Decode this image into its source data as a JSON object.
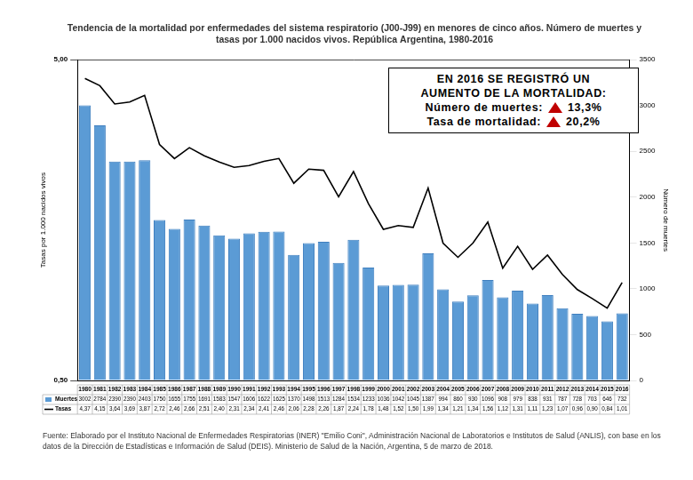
{
  "chart_data": {
    "type": "bar",
    "title": [
      "Tendencia de la mortalidad por enfermedades del sistema respiratorio (J00-J99) en menores de cinco años. Número de muertes y",
      "tasas por 1.000 nacidos vivos. República Argentina, 1980-2016"
    ],
    "y_label": "Tasas por 1.000 nacidos vivos",
    "y2_label": "Número de muertes",
    "categories": [
      "1980",
      "1981",
      "1982",
      "1983",
      "1984",
      "1985",
      "1986",
      "1987",
      "1988",
      "1989",
      "1990",
      "1991",
      "1992",
      "1993",
      "1994",
      "1995",
      "1996",
      "1997",
      "1998",
      "1999",
      "2000",
      "2001",
      "2002",
      "2003",
      "2004",
      "2005",
      "2006",
      "2007",
      "2008",
      "2009",
      "2010",
      "2011",
      "2012",
      "2013",
      "2014",
      "2015",
      "2016"
    ],
    "series": [
      {
        "name": "Muertes",
        "type": "bar",
        "axis": "y2",
        "color": "#5b9bd5",
        "values": [
          3002,
          2784,
          2390,
          2390,
          2403,
          1750,
          1655,
          1755,
          1691,
          1583,
          1547,
          1606,
          1622,
          1625,
          1370,
          1498,
          1513,
          1284,
          1534,
          1233,
          1036,
          1042,
          1045,
          1387,
          994,
          860,
          930,
          1096,
          908,
          979,
          838,
          931,
          787,
          728,
          703,
          646,
          732
        ]
      },
      {
        "name": "Tasas",
        "type": "line",
        "color": "#000000",
        "marker": "none",
        "line_style": "solid",
        "values": [
          4.37,
          4.15,
          3.64,
          3.69,
          3.87,
          2.72,
          2.46,
          2.66,
          2.51,
          2.4,
          2.31,
          2.34,
          2.41,
          2.46,
          2.06,
          2.28,
          2.26,
          1.87,
          2.24,
          1.78,
          1.48,
          1.52,
          1.5,
          1.99,
          1.34,
          1.21,
          1.34,
          1.56,
          1.12,
          1.31,
          1.11,
          1.23,
          1.07,
          0.96,
          0.9,
          0.84,
          1.01
        ],
        "value_labels": [
          "4,37",
          "4,15",
          "3,64",
          "3,69",
          "3,87",
          "2,72",
          "2,46",
          "2,66",
          "2,51",
          "2,40",
          "2,31",
          "2,34",
          "2,41",
          "2,46",
          "2,06",
          "2,28",
          "2,26",
          "1,87",
          "2,24",
          "1,78",
          "1,48",
          "1,52",
          "1,50",
          "1,99",
          "1,34",
          "1,21",
          "1,34",
          "1,56",
          "1,12",
          "1,31",
          "1,11",
          "1,23",
          "1,07",
          "0,96",
          "0,90",
          "0,84",
          "1,01"
        ]
      }
    ],
    "log": "y",
    "ylim": [
      0.5,
      5
    ],
    "yticks": [
      {
        "value": 0.5,
        "label": "0,50"
      },
      {
        "value": 5,
        "label": "5,00"
      }
    ],
    "y2lim": [
      0,
      3500
    ],
    "y2ticks": [
      0,
      500,
      1000,
      1500,
      2000,
      2500,
      3000,
      3500
    ],
    "grid": true,
    "annotations": [
      {
        "title": [
          "EN 2016 SE REGISTRÓ UN",
          "AUMENTO DE LA MORTALIDAD:"
        ],
        "items": [
          {
            "label": "Número de muertes:",
            "value": "13,3%"
          },
          {
            "label": "Tasa de mortalidad:",
            "value": "20,2%"
          }
        ]
      }
    ],
    "source": "Fuente: Elaborado por el Instituto Nacional de Enfermedades Respiratorias (INER) \"Emilio Coni\", Administración Nacional de Laboratorios e Institutos de Salud (ANLIS), con base en los datos de la Dirección de Estadísticas e Información de Salud (DEIS). Ministerio de Salud de la Nación, Argentina, 5 de marzo de 2018."
  }
}
